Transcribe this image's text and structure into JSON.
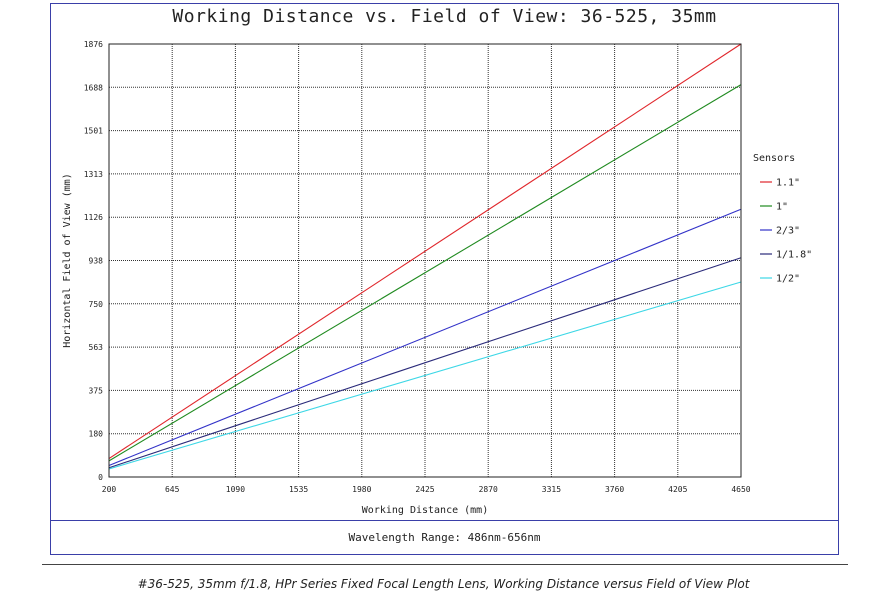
{
  "header": {
    "title": "Working Distance vs. Field of View: 36-525, 35mm"
  },
  "footer": {
    "wavelength": "Wavelength Range: 486nm-656nm",
    "caption": "#36-525, 35mm f/1.8, HPr Series Fixed Focal Length Lens, Working Distance versus Field of View Plot"
  },
  "chart_data": {
    "type": "line",
    "title": "Working Distance vs. Field of View: 36-525, 35mm",
    "xlabel": "Working Distance (mm)",
    "ylabel": "Horizontal Field of View (mm)",
    "xlim": [
      200,
      4650
    ],
    "ylim": [
      0,
      1876
    ],
    "x_ticks": [
      "200",
      "645",
      "1090",
      "1535",
      "1980",
      "2425",
      "2870",
      "3315",
      "3760",
      "4205",
      "4650"
    ],
    "y_ticks": [
      "0",
      "180",
      "375",
      "563",
      "750",
      "938",
      "1126",
      "1313",
      "1501",
      "1688",
      "1876"
    ],
    "grid": true,
    "legend_title": "Sensors",
    "legend_position": "right",
    "series": [
      {
        "name": "1.1\"",
        "color": "#e0262b",
        "x": [
          200,
          4650
        ],
        "y": [
          80,
          1876
        ]
      },
      {
        "name": "1\"",
        "color": "#1f8a1f",
        "x": [
          200,
          4650
        ],
        "y": [
          70,
          1700
        ]
      },
      {
        "name": "2/3\"",
        "color": "#3232c8",
        "x": [
          200,
          4650
        ],
        "y": [
          50,
          1160
        ]
      },
      {
        "name": "1/1.8\"",
        "color": "#2a2a7a",
        "x": [
          200,
          4650
        ],
        "y": [
          40,
          950
        ]
      },
      {
        "name": "1/2\"",
        "color": "#3cd7e6",
        "x": [
          200,
          4650
        ],
        "y": [
          35,
          845
        ]
      }
    ]
  }
}
